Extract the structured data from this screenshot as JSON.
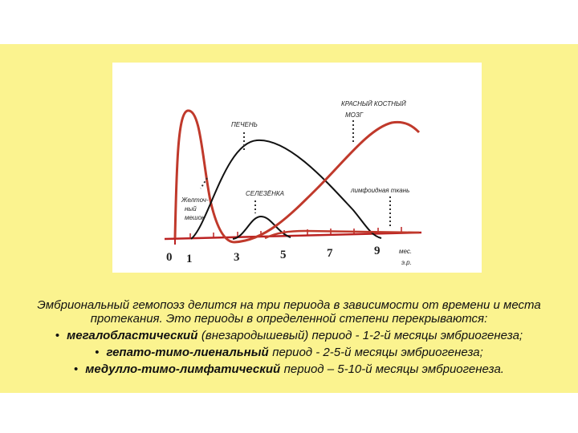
{
  "diagram": {
    "labels": {
      "yolk_sac": [
        "Желточ-",
        "ный",
        "мешок"
      ],
      "liver": "ПЕЧЕНЬ",
      "spleen": "СЕЛЕЗЁНКА",
      "bone_marrow": [
        "КРАСНЫЙ КОСТНЫЙ",
        "МОЗГ"
      ],
      "lymphoid": "лимфоидная ткань"
    },
    "x_ticks": [
      "0",
      "1",
      "3",
      "5",
      "7",
      "9"
    ],
    "x_unit": [
      "мес.",
      "э.р."
    ]
  },
  "text": {
    "intro": "Эмбриональный гемопоэз делится на три периода в зависимости от времени и места протекания. Это периоды в определенной степени перекрываются:",
    "bullets": [
      {
        "bold": "мегалобластический",
        "rest": "(внезародышевый) период - 1-2-й месяцы эмбриогенеза;"
      },
      {
        "bold": "гепато-тимо-лиенальный",
        "rest": "период - 2-5-й месяцы эмбриогенеза;"
      },
      {
        "bold": "медулло-тимо-лимфатический",
        "rest": "период – 5-10-й месяцы эмбриогенеза."
      }
    ]
  }
}
